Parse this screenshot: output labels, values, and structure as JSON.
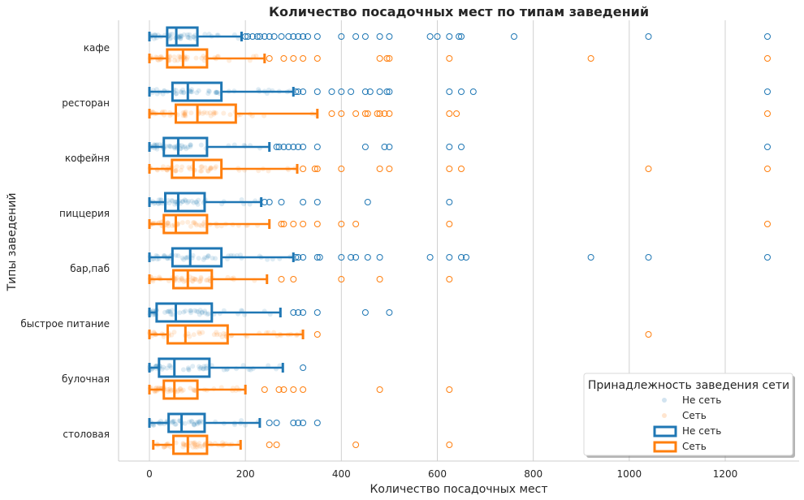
{
  "chart_data": {
    "type": "boxplot+strip",
    "title": "Количество посадочных мест по типам заведений",
    "xlabel": "Количество посадочных мест",
    "ylabel": "Типы заведений",
    "xlim": [
      -65,
      1350
    ],
    "xticks": [
      0,
      200,
      400,
      600,
      800,
      1000,
      1200
    ],
    "grid": "vertical",
    "categories": [
      "кафе",
      "ресторан",
      "кофейня",
      "пиццерия",
      "бар,паб",
      "быстрое питание",
      "булочная",
      "столовая"
    ],
    "series": [
      {
        "name": "Не сеть",
        "color": "#1f77b4",
        "boxes": [
          {
            "category": "кафе",
            "whisker_low": 0,
            "q1": 37,
            "median": 56,
            "q3": 100,
            "whisker_high": 192,
            "outliers": [
              200,
              205,
              215,
              225,
              230,
              240,
              250,
              260,
              275,
              290,
              300,
              310,
              320,
              330,
              350,
              400,
              430,
              450,
              480,
              500,
              585,
              600,
              625,
              645,
              650,
              760,
              1040,
              1288
            ]
          },
          {
            "category": "ресторан",
            "whisker_low": 0,
            "q1": 48,
            "median": 80,
            "q3": 150,
            "whisker_high": 300,
            "outliers": [
              305,
              310,
              320,
              350,
              380,
              400,
              420,
              450,
              460,
              480,
              495,
              500,
              625,
              650,
              675,
              1288
            ]
          },
          {
            "category": "кофейня",
            "whisker_low": 0,
            "q1": 30,
            "median": 60,
            "q3": 120,
            "whisker_high": 250,
            "outliers": [
              265,
              270,
              280,
              290,
              300,
              310,
              320,
              350,
              450,
              490,
              500,
              625,
              650,
              1288
            ]
          },
          {
            "category": "пиццерия",
            "whisker_low": 0,
            "q1": 33,
            "median": 60,
            "q3": 115,
            "whisker_high": 233,
            "outliers": [
              240,
              250,
              275,
              320,
              350,
              455,
              625
            ]
          },
          {
            "category": "бар,паб",
            "whisker_low": 0,
            "q1": 48,
            "median": 85,
            "q3": 150,
            "whisker_high": 300,
            "outliers": [
              305,
              310,
              320,
              350,
              355,
              400,
              420,
              430,
              455,
              480,
              585,
              625,
              650,
              660,
              920,
              1040,
              1288
            ]
          },
          {
            "category": "быстрое питание",
            "whisker_low": 0,
            "q1": 15,
            "median": 55,
            "q3": 130,
            "whisker_high": 273,
            "outliers": [
              300,
              310,
              320,
              350,
              450,
              500
            ]
          },
          {
            "category": "булочная",
            "whisker_low": 0,
            "q1": 20,
            "median": 52,
            "q3": 125,
            "whisker_high": 278,
            "outliers": [
              320
            ]
          },
          {
            "category": "столовая",
            "whisker_low": 0,
            "q1": 40,
            "median": 67,
            "q3": 115,
            "whisker_high": 230,
            "outliers": [
              250,
              265,
              300,
              310,
              320,
              350
            ]
          }
        ]
      },
      {
        "name": "Сеть",
        "color": "#ff7f0e",
        "boxes": [
          {
            "category": "кафе",
            "whisker_low": 0,
            "q1": 37,
            "median": 70,
            "q3": 120,
            "whisker_high": 240,
            "outliers": [
              250,
              280,
              300,
              320,
              350,
              480,
              495,
              500,
              625,
              920,
              1288
            ]
          },
          {
            "category": "ресторан",
            "whisker_low": 0,
            "q1": 55,
            "median": 100,
            "q3": 180,
            "whisker_high": 350,
            "outliers": [
              380,
              400,
              430,
              450,
              455,
              475,
              480,
              490,
              500,
              625,
              640,
              1288
            ]
          },
          {
            "category": "кофейня",
            "whisker_low": 0,
            "q1": 47,
            "median": 92,
            "q3": 150,
            "whisker_high": 308,
            "outliers": [
              320,
              345,
              350,
              400,
              480,
              500,
              625,
              650,
              1040,
              1288
            ]
          },
          {
            "category": "пиццерия",
            "whisker_low": 0,
            "q1": 30,
            "median": 55,
            "q3": 120,
            "whisker_high": 250,
            "outliers": [
              275,
              280,
              300,
              320,
              350,
              400,
              430,
              625,
              1288
            ]
          },
          {
            "category": "бар,паб",
            "whisker_low": 0,
            "q1": 50,
            "median": 80,
            "q3": 130,
            "whisker_high": 245,
            "outliers": [
              275,
              300,
              400,
              480,
              625
            ]
          },
          {
            "category": "быстрое питание",
            "whisker_low": 0,
            "q1": 38,
            "median": 75,
            "q3": 163,
            "whisker_high": 320,
            "outliers": [
              350,
              1040
            ]
          },
          {
            "category": "булочная",
            "whisker_low": 0,
            "q1": 30,
            "median": 52,
            "q3": 100,
            "whisker_high": 200,
            "outliers": [
              240,
              270,
              280,
              300,
              320,
              480,
              625
            ]
          },
          {
            "category": "столовая",
            "whisker_low": 8,
            "q1": 50,
            "median": 80,
            "q3": 120,
            "whisker_high": 190,
            "outliers": [
              250,
              265,
              430,
              625
            ]
          }
        ]
      }
    ],
    "legend": {
      "title": "Принадлежность заведения сети",
      "placement": "bottom-right",
      "entries": [
        {
          "label": "Не сеть",
          "kind": "points"
        },
        {
          "label": "Сеть",
          "kind": "points"
        },
        {
          "label": "Не сеть",
          "kind": "box"
        },
        {
          "label": "Сеть",
          "kind": "box"
        }
      ]
    }
  }
}
